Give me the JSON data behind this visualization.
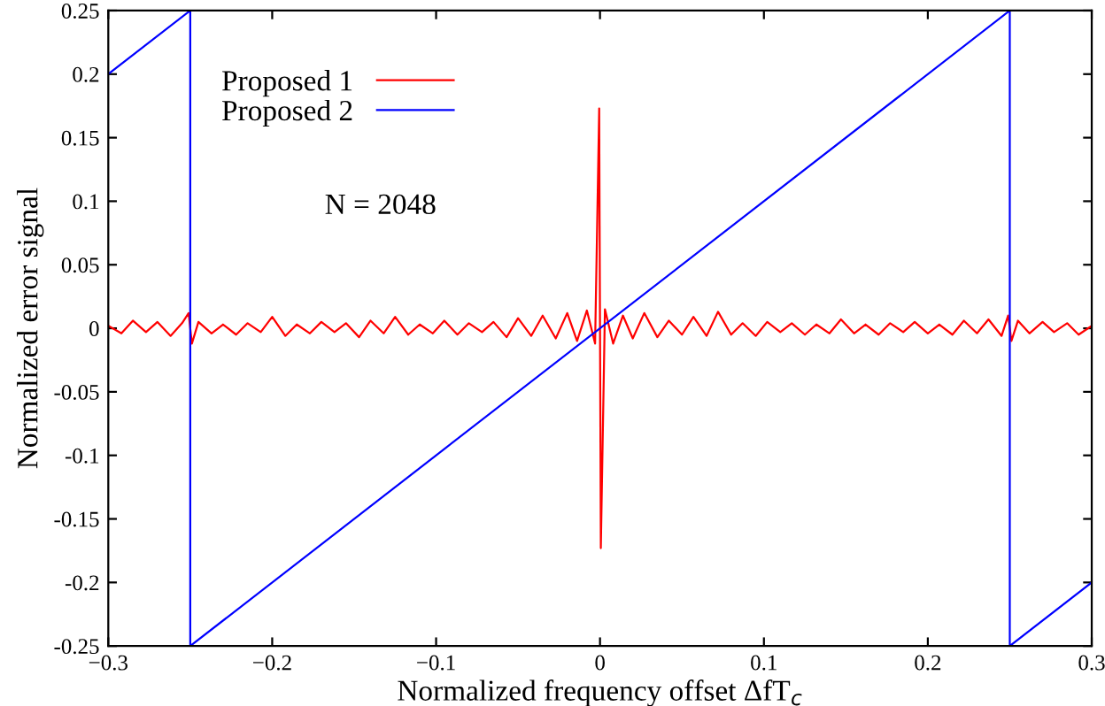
{
  "chart_data": {
    "type": "line",
    "xlabel": "Normalized frequency offset ΔfT$_{c}$",
    "ylabel": "Normalized error signal",
    "annotations": [
      "N = 2048"
    ],
    "xlim": [
      -0.3,
      0.3
    ],
    "ylim": [
      -0.25,
      0.25
    ],
    "xticks": [
      {
        "value": -0.3,
        "label": "−0.3"
      },
      {
        "value": -0.2,
        "label": "−0.2"
      },
      {
        "value": -0.1,
        "label": "−0.1"
      },
      0,
      0.1,
      0.2,
      0.3
    ],
    "yticks": [
      {
        "value": -0.25,
        "label": "-0.25"
      },
      {
        "value": -0.2,
        "label": "-0.2"
      },
      {
        "value": -0.15,
        "label": "-0.15"
      },
      {
        "value": -0.1,
        "label": "-0.1"
      },
      {
        "value": -0.05,
        "label": "-0.05"
      },
      0,
      0.05,
      0.1,
      0.15,
      0.2,
      0.25
    ],
    "grid": false,
    "legend": "top left",
    "marker": "none",
    "line_style": "solid",
    "series": [
      {
        "name": "Proposed 1",
        "color": "#ff0000",
        "x": [
          -0.3,
          -0.292,
          -0.285,
          -0.277,
          -0.27,
          -0.262,
          -0.255,
          -0.251,
          -0.249,
          -0.245,
          -0.237,
          -0.23,
          -0.222,
          -0.215,
          -0.207,
          -0.2,
          -0.192,
          -0.185,
          -0.177,
          -0.17,
          -0.162,
          -0.155,
          -0.147,
          -0.14,
          -0.132,
          -0.125,
          -0.117,
          -0.11,
          -0.102,
          -0.095,
          -0.087,
          -0.08,
          -0.072,
          -0.065,
          -0.057,
          -0.05,
          -0.042,
          -0.035,
          -0.027,
          -0.02,
          -0.014,
          -0.008,
          -0.003,
          -0.0005,
          0.0005,
          0.003,
          0.008,
          0.014,
          0.02,
          0.027,
          0.035,
          0.042,
          0.05,
          0.057,
          0.065,
          0.072,
          0.08,
          0.087,
          0.095,
          0.102,
          0.11,
          0.117,
          0.125,
          0.132,
          0.14,
          0.147,
          0.155,
          0.162,
          0.17,
          0.177,
          0.185,
          0.192,
          0.2,
          0.207,
          0.215,
          0.222,
          0.23,
          0.237,
          0.245,
          0.249,
          0.251,
          0.255,
          0.262,
          0.27,
          0.277,
          0.285,
          0.292,
          0.3
        ],
        "values": [
          0.002,
          -0.004,
          0.006,
          -0.003,
          0.005,
          -0.006,
          0.004,
          0.012,
          -0.012,
          0.005,
          -0.004,
          0.003,
          -0.005,
          0.004,
          -0.003,
          0.009,
          -0.006,
          0.003,
          -0.004,
          0.005,
          -0.003,
          0.004,
          -0.007,
          0.006,
          -0.004,
          0.009,
          -0.005,
          0.003,
          -0.004,
          0.006,
          -0.005,
          0.004,
          -0.003,
          0.005,
          -0.007,
          0.008,
          -0.006,
          0.01,
          -0.008,
          0.012,
          -0.01,
          0.014,
          -0.012,
          0.173,
          -0.173,
          0.015,
          -0.012,
          0.01,
          -0.008,
          0.012,
          -0.007,
          0.006,
          -0.005,
          0.009,
          -0.006,
          0.013,
          -0.005,
          0.004,
          -0.006,
          0.005,
          -0.003,
          0.004,
          -0.005,
          0.003,
          -0.004,
          0.007,
          -0.004,
          0.003,
          -0.005,
          0.004,
          -0.003,
          0.005,
          -0.004,
          0.003,
          -0.005,
          0.006,
          -0.004,
          0.007,
          -0.006,
          0.01,
          -0.01,
          0.006,
          -0.004,
          0.005,
          -0.003,
          0.004,
          -0.005,
          0.002
        ]
      },
      {
        "name": "Proposed 2",
        "color": "#0000ff",
        "x": [
          -0.3,
          -0.25,
          -0.25,
          0.25,
          0.25,
          0.3
        ],
        "values": [
          0.2,
          0.25,
          -0.25,
          0.25,
          -0.25,
          -0.2
        ]
      }
    ]
  }
}
